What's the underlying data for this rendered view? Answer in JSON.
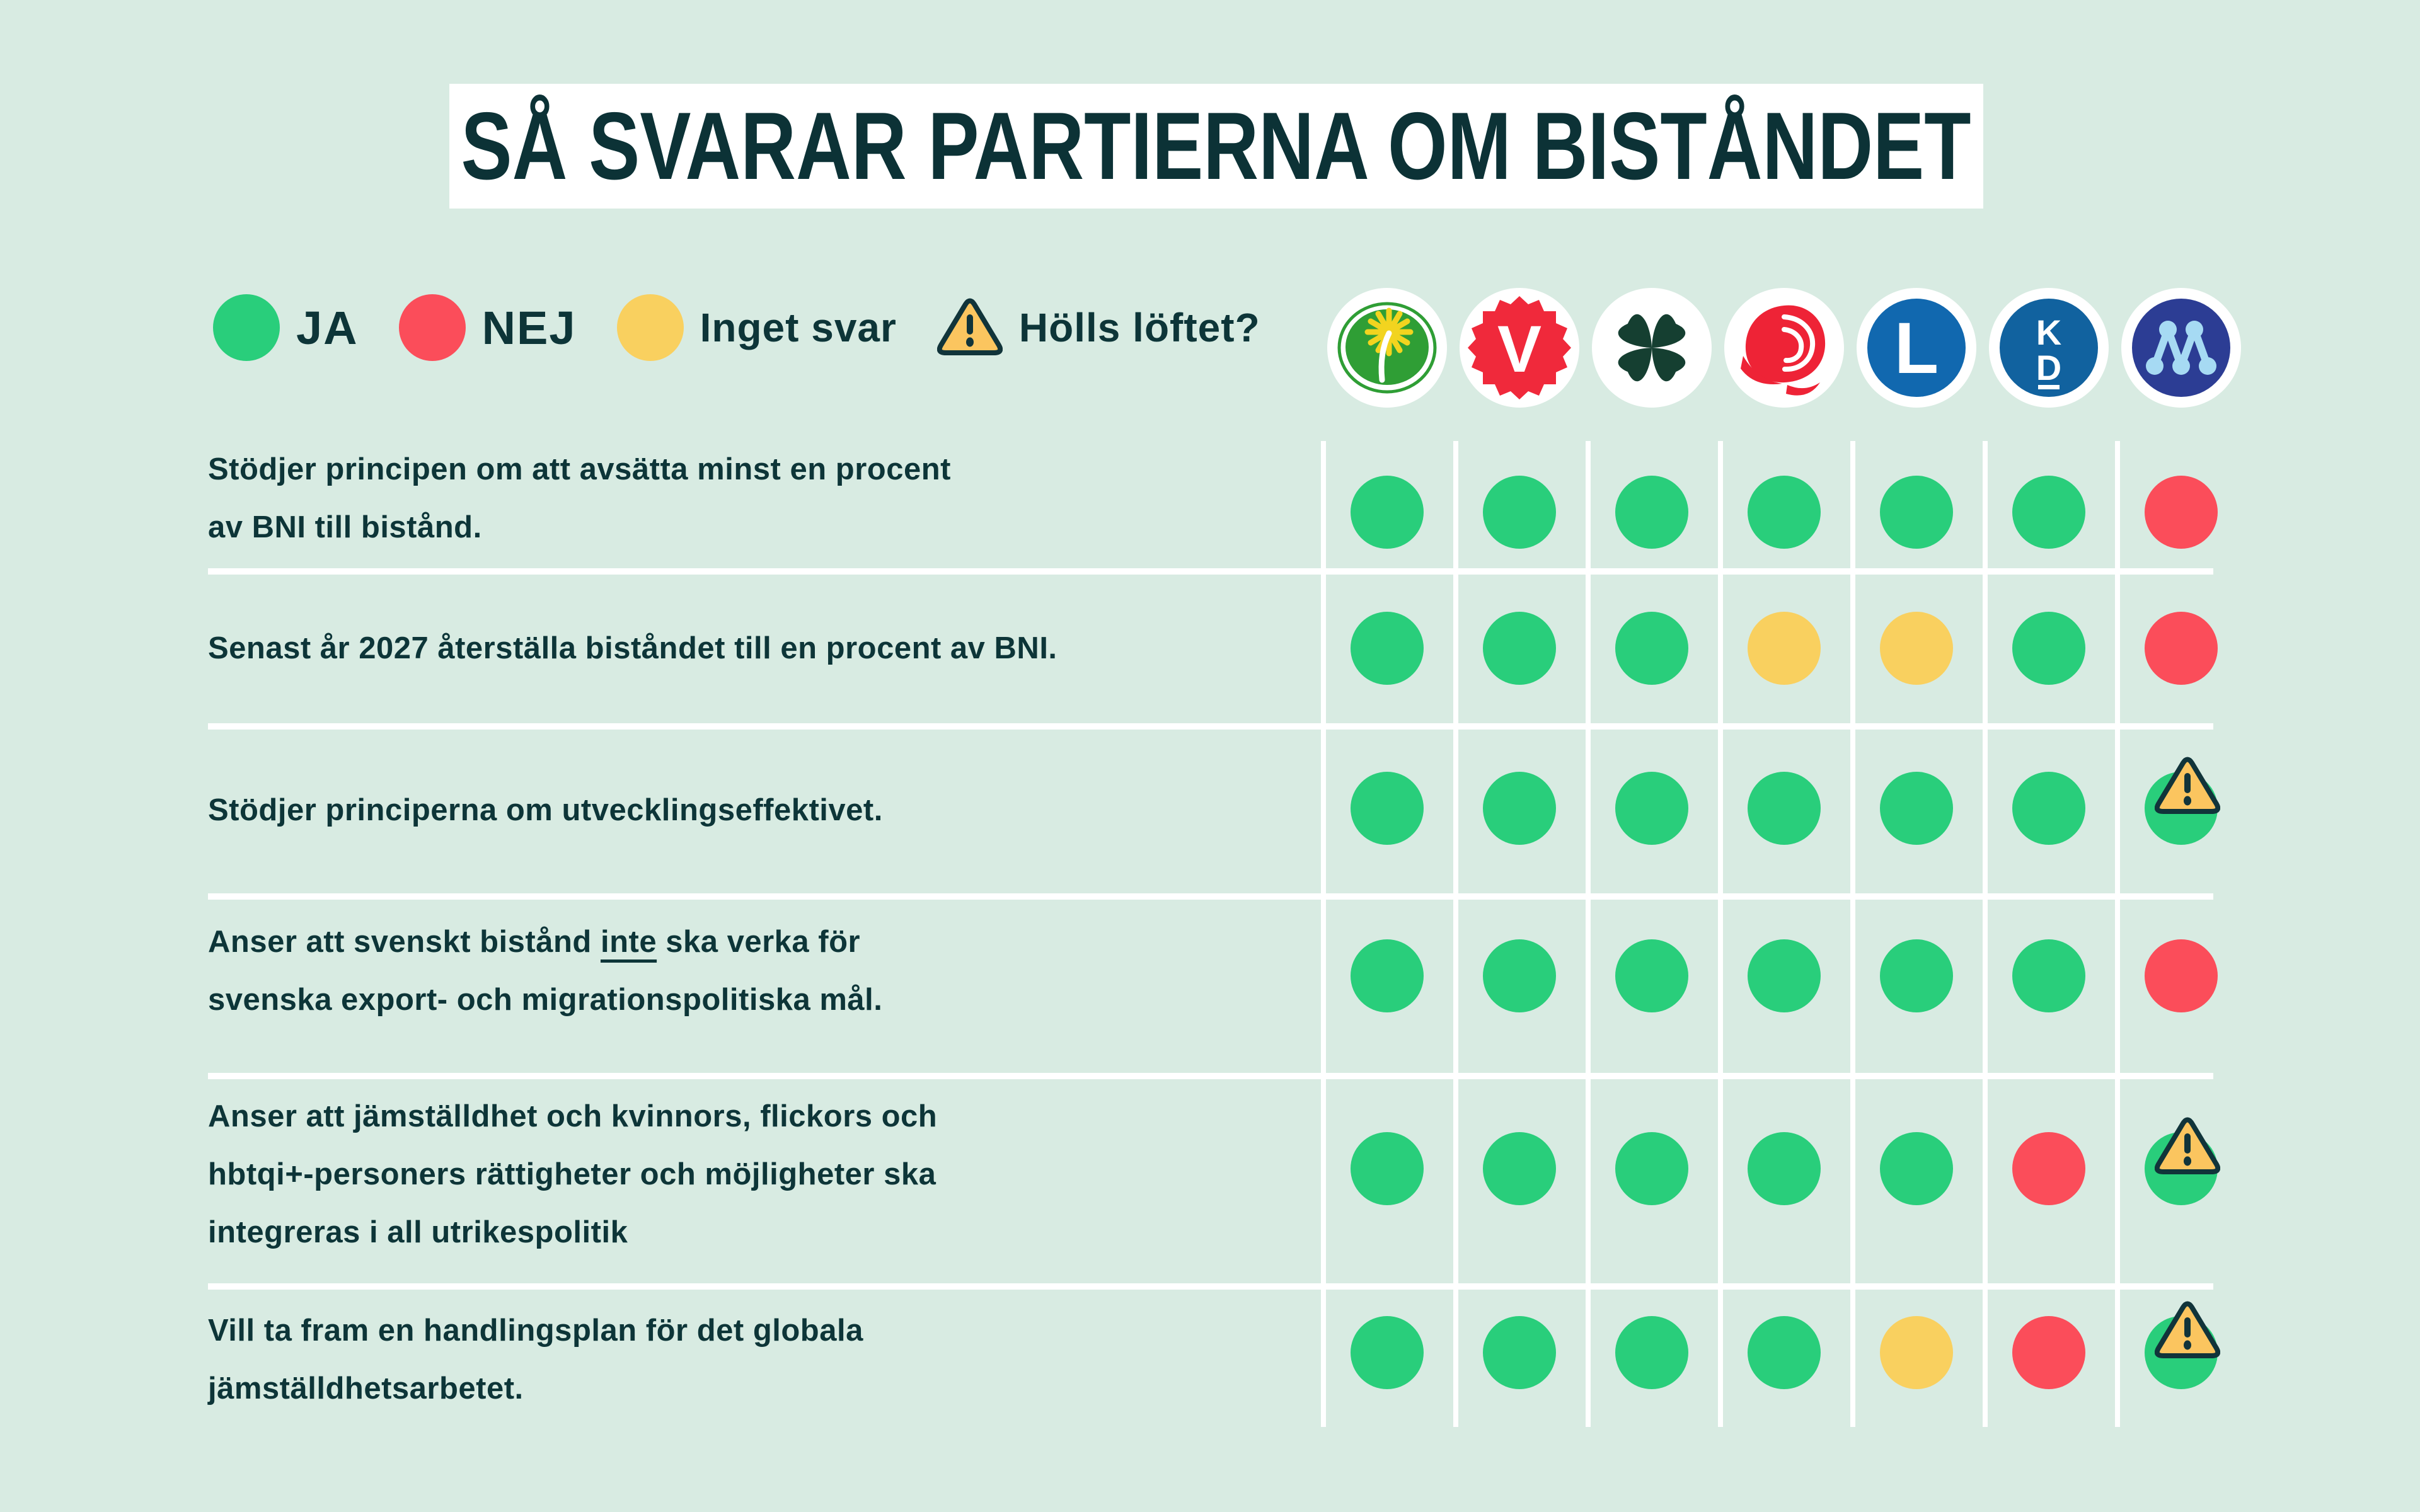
{
  "chart_data": {
    "type": "table",
    "title": "SÅ SVARAR PARTIERNA OM BISTÅNDET",
    "legend": {
      "items": [
        {
          "icon": "ja-dot",
          "color": "#29ce7b",
          "label": "JA"
        },
        {
          "icon": "nej-dot",
          "color": "#fb4d5a",
          "label": "NEJ"
        },
        {
          "icon": "inget-svar-dot",
          "color": "#f9d05f",
          "label": "Inget svar"
        },
        {
          "icon": "warning-triangle",
          "color": "#fbc55f",
          "label": "Hölls löftet?"
        }
      ]
    },
    "answer_colors": {
      "ja": "#29ce7b",
      "nej": "#fb4d5a",
      "inget_svar": "#f9d05f"
    },
    "warning_badge": {
      "fill": "#fbc55f",
      "stroke": "#11343a",
      "meaning": "Hölls löftet?"
    },
    "parties": [
      {
        "id": "mp",
        "icon": "miljopartiet-logo",
        "color": "#2f9e35"
      },
      {
        "id": "v",
        "icon": "vansterpartiet-logo",
        "color": "#f0293b"
      },
      {
        "id": "c",
        "icon": "centerpartiet-logo",
        "color": "#153f31"
      },
      {
        "id": "s",
        "icon": "socialdemokraterna-logo",
        "color": "#ee2336"
      },
      {
        "id": "l",
        "icon": "liberalerna-logo",
        "color": "#1168af"
      },
      {
        "id": "kd",
        "icon": "kristdemokraterna-logo",
        "color": "#11629f"
      },
      {
        "id": "m",
        "icon": "moderaterna-logo",
        "color": "#2c3d94"
      }
    ],
    "rows": [
      {
        "statement_lines": [
          "Stödjer principen om att avsätta minst en procent",
          "av BNI till bistånd."
        ],
        "answers": [
          "ja",
          "ja",
          "ja",
          "ja",
          "ja",
          "ja",
          "nej"
        ],
        "promise_warning": [
          false,
          false,
          false,
          false,
          false,
          false,
          false
        ]
      },
      {
        "statement_lines": [
          "Senast år 2027 återställa biståndet till en procent av BNI."
        ],
        "answers": [
          "ja",
          "ja",
          "ja",
          "inget_svar",
          "inget_svar",
          "ja",
          "nej"
        ],
        "promise_warning": [
          false,
          false,
          false,
          false,
          false,
          false,
          false
        ]
      },
      {
        "statement_lines": [
          "Stödjer principerna om utvecklingseffektivet."
        ],
        "answers": [
          "ja",
          "ja",
          "ja",
          "ja",
          "ja",
          "ja",
          "ja"
        ],
        "promise_warning": [
          false,
          false,
          false,
          false,
          false,
          false,
          true
        ]
      },
      {
        "statement_lines": [
          "Anser att svenskt bistånd inte  ska verka för",
          "svenska export- och migrationspolitiska mål."
        ],
        "underlined_word": "inte",
        "answers": [
          "ja",
          "ja",
          "ja",
          "ja",
          "ja",
          "ja",
          "nej"
        ],
        "promise_warning": [
          false,
          false,
          false,
          false,
          false,
          false,
          false
        ]
      },
      {
        "statement_lines": [
          "Anser att jämställdhet och kvinnors, flickors och",
          "hbtqi+-personers rättigheter och möjligheter ska",
          "integreras i all utrikespolitik"
        ],
        "answers": [
          "ja",
          "ja",
          "ja",
          "ja",
          "ja",
          "nej",
          "ja"
        ],
        "promise_warning": [
          false,
          false,
          false,
          false,
          false,
          false,
          true
        ]
      },
      {
        "statement_lines": [
          "Vill ta fram en handlingsplan för det globala",
          "jämställdhetsarbetet."
        ],
        "answers": [
          "ja",
          "ja",
          "ja",
          "ja",
          "inget_svar",
          "nej",
          "ja"
        ],
        "promise_warning": [
          false,
          false,
          false,
          false,
          false,
          false,
          true
        ]
      }
    ]
  }
}
